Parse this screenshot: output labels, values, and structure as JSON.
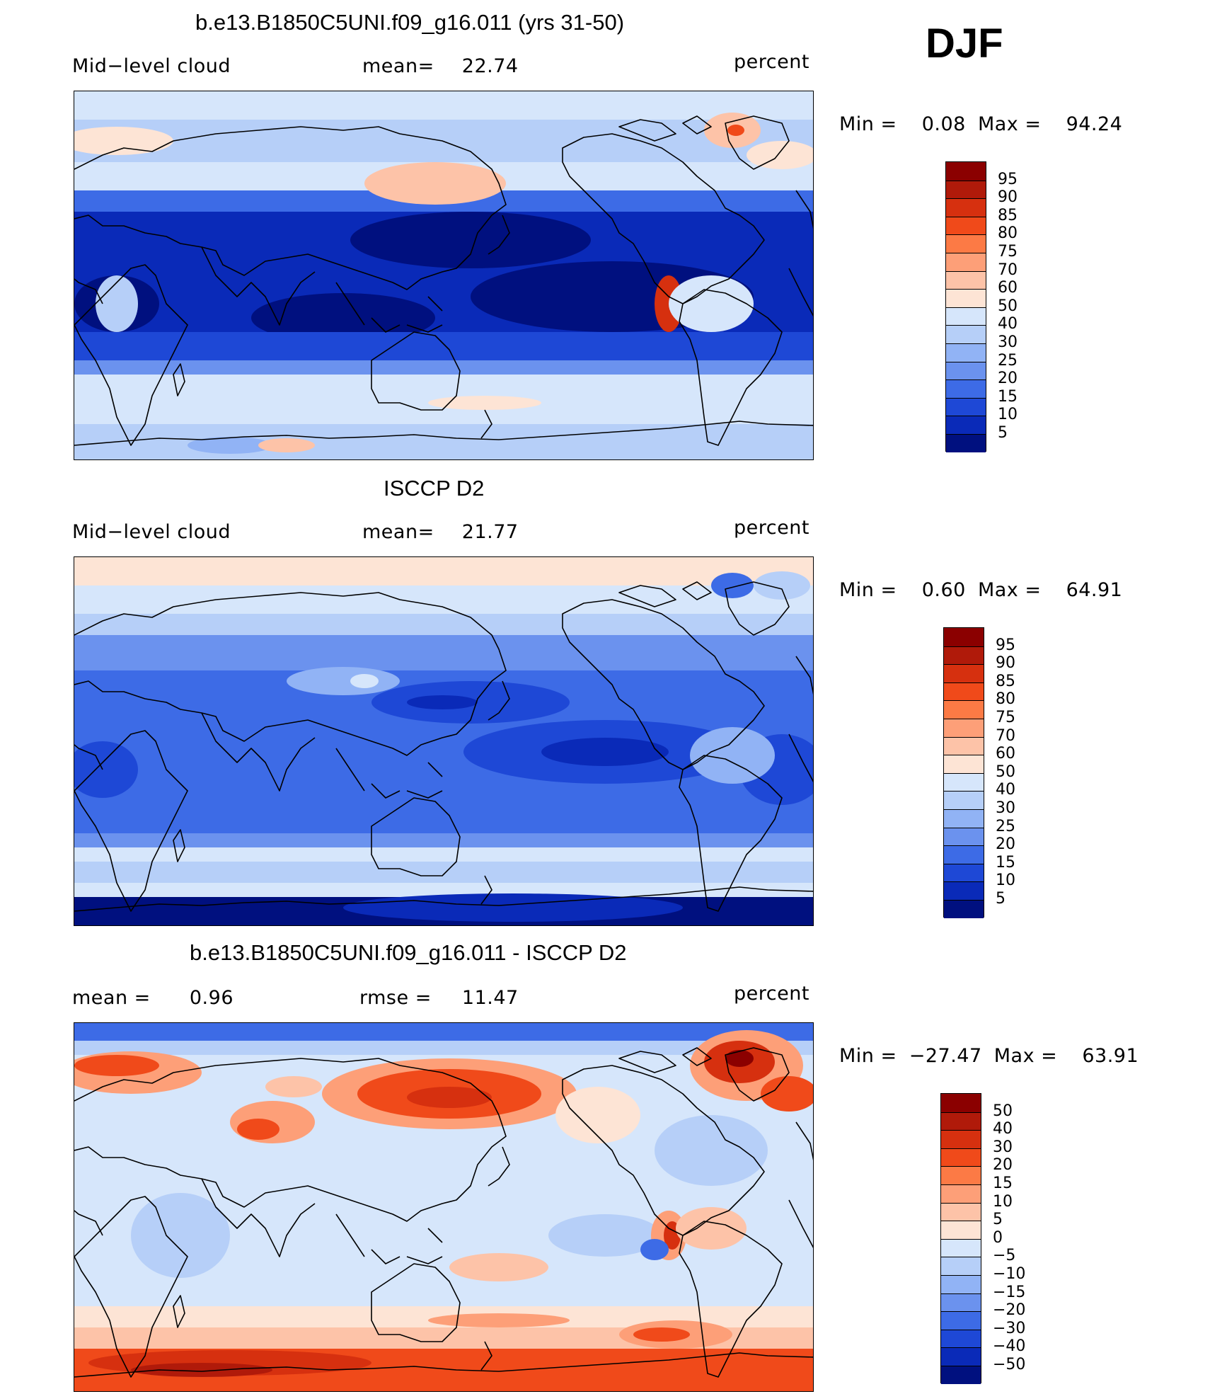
{
  "season": "DJF",
  "panels": [
    {
      "id": "model",
      "title": "b.e13.B1850C5UNI.f09_g16.011 (yrs 31-50)",
      "left_label": "Mid−level cloud",
      "center_label": "mean=",
      "center_value": "22.74",
      "right_label": "percent",
      "stats": {
        "min_label": "Min  =",
        "min": "0.08",
        "max_label": "Max  =",
        "max": "94.24"
      },
      "colorbar": {
        "ticks": [
          "95",
          "90",
          "85",
          "80",
          "75",
          "70",
          "60",
          "50",
          "40",
          "30",
          "25",
          "20",
          "15",
          "10",
          "5"
        ],
        "colors": [
          "#8b0000",
          "#b01a0a",
          "#d6300f",
          "#f04a1a",
          "#fc7a45",
          "#fd9f78",
          "#fdc3a8",
          "#fde4d5",
          "#d6e6fb",
          "#b6cff8",
          "#91b3f5",
          "#6b92ee",
          "#3d6be6",
          "#1e48d6",
          "#0a2ab8",
          "#00107f"
        ]
      }
    },
    {
      "id": "obs",
      "title": "ISCCP D2",
      "left_label": "Mid−level cloud",
      "center_label": "mean=",
      "center_value": "21.77",
      "right_label": "percent",
      "stats": {
        "min_label": "Min  =",
        "min": "0.60",
        "max_label": "Max  =",
        "max": "64.91"
      },
      "colorbar": {
        "ticks": [
          "95",
          "90",
          "85",
          "80",
          "75",
          "70",
          "60",
          "50",
          "40",
          "30",
          "25",
          "20",
          "15",
          "10",
          "5"
        ],
        "colors": [
          "#8b0000",
          "#b01a0a",
          "#d6300f",
          "#f04a1a",
          "#fc7a45",
          "#fd9f78",
          "#fdc3a8",
          "#fde4d5",
          "#d6e6fb",
          "#b6cff8",
          "#91b3f5",
          "#6b92ee",
          "#3d6be6",
          "#1e48d6",
          "#0a2ab8",
          "#00107f"
        ]
      }
    },
    {
      "id": "diff",
      "title": "b.e13.B1850C5UNI.f09_g16.011 - ISCCP D2",
      "left_label": "mean =",
      "left_value": "0.96",
      "center_label": "rmse  =",
      "center_value": "11.47",
      "right_label": "percent",
      "stats": {
        "min_label": "Min  =",
        "min": "−27.47",
        "max_label": "Max  =",
        "max": "63.91"
      },
      "colorbar": {
        "ticks": [
          "50",
          "40",
          "30",
          "20",
          "15",
          "10",
          "5",
          "0",
          "−5",
          "−10",
          "−15",
          "−20",
          "−30",
          "−40",
          "−50"
        ],
        "colors": [
          "#8b0000",
          "#b01a0a",
          "#d6300f",
          "#f04a1a",
          "#fc7a45",
          "#fd9f78",
          "#fdc3a8",
          "#fde4d5",
          "#d6e6fb",
          "#b6cff8",
          "#91b3f5",
          "#6b92ee",
          "#3d6be6",
          "#1e48d6",
          "#0a2ab8",
          "#00107f"
        ]
      }
    }
  ]
}
